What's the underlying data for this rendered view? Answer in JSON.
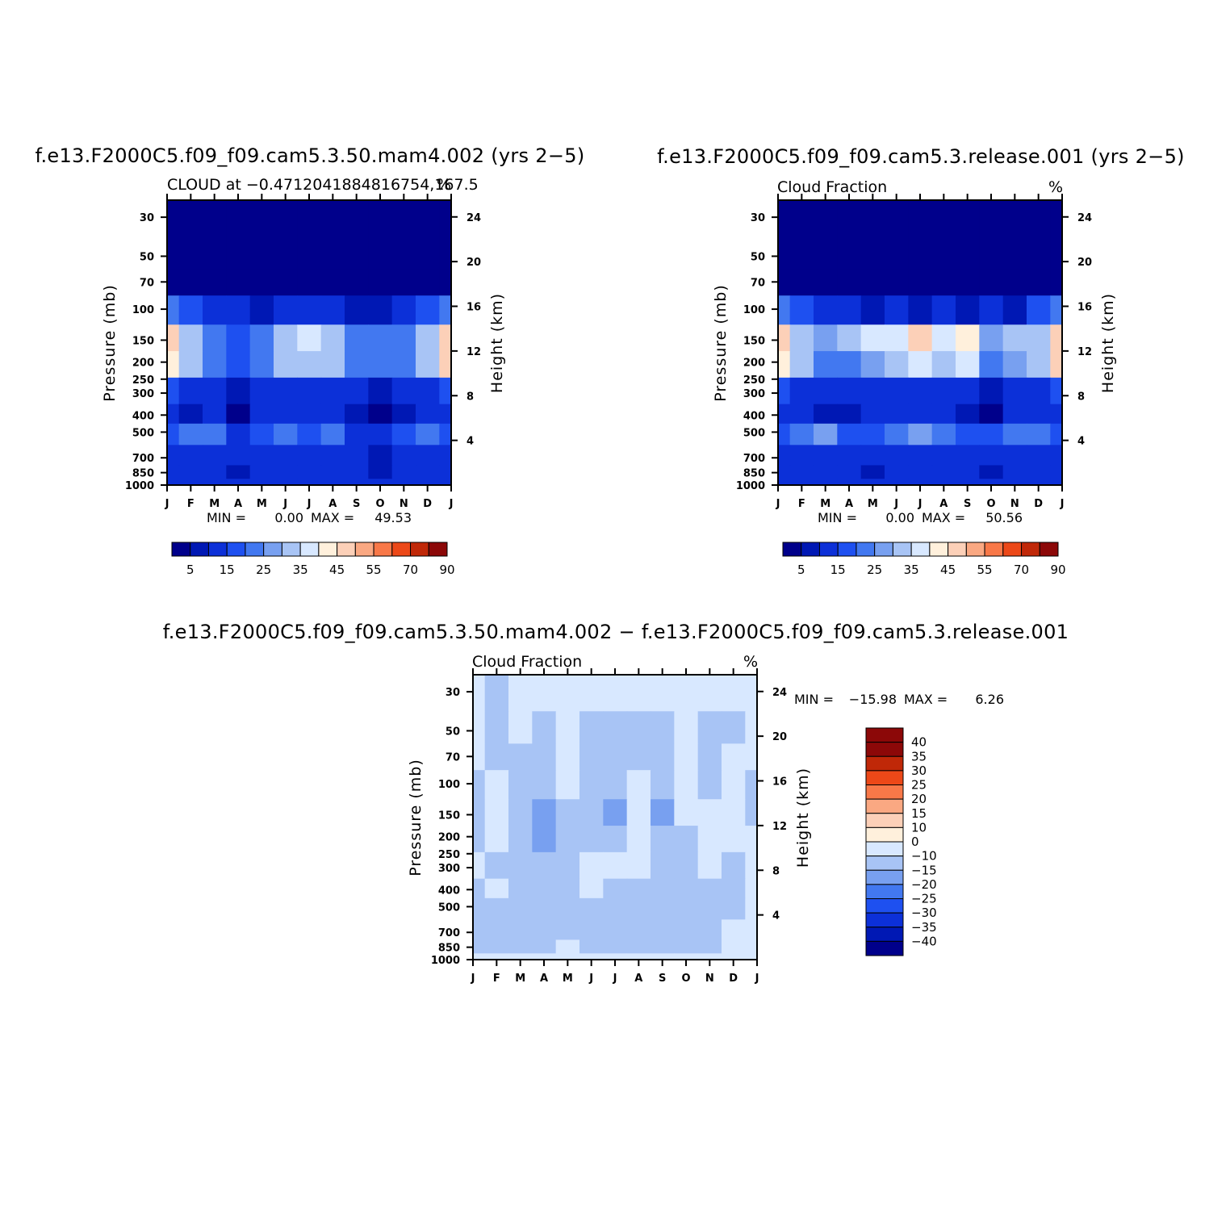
{
  "chart_data": [
    {
      "type": "heatmap",
      "title": "f.e13.F2000C5.f09_f09.cam5.3.50.mam4.002 (yrs 2−5)",
      "subtitle": "CLOUD at −0.4712041884816754,167.5",
      "units": "%",
      "xlabel": "",
      "ylabel": "Pressure (mb)",
      "y2label": "Height (km)",
      "x_ticks": [
        "J",
        "F",
        "M",
        "A",
        "M",
        "J",
        "J",
        "A",
        "S",
        "O",
        "N",
        "D",
        "J"
      ],
      "y_ticks": [
        "30",
        "50",
        "70",
        "100",
        "150",
        "200",
        "250",
        "300",
        "400",
        "500",
        "700",
        "850",
        "1000"
      ],
      "y_tick_values": [
        30,
        50,
        70,
        100,
        150,
        200,
        250,
        300,
        400,
        500,
        700,
        850,
        1000
      ],
      "y2_ticks": [
        "24",
        "20",
        "16",
        "12",
        "8",
        "4"
      ],
      "y2_tick_values": [
        24,
        20,
        16,
        12,
        8,
        4
      ],
      "stats": {
        "min_label": "MIN =",
        "min": "0.00",
        "max_label": "MAX =",
        "max": "49.53"
      },
      "levels": [
        "5",
        "15",
        "25",
        "35",
        "45",
        "55",
        "70",
        "90"
      ],
      "months": [
        0,
        1,
        2,
        3,
        4,
        5,
        6,
        7,
        8,
        9,
        10,
        11,
        12
      ],
      "pressure": [
        30,
        50,
        70,
        100,
        150,
        200,
        300,
        400,
        500,
        700,
        850,
        1000
      ],
      "values": [
        [
          0,
          0,
          0,
          0,
          0,
          0,
          0,
          0,
          0,
          0,
          0,
          0,
          0
        ],
        [
          0,
          0,
          0,
          0,
          0,
          0,
          0,
          0,
          0,
          0,
          0,
          0,
          0
        ],
        [
          3,
          1,
          0,
          0,
          0,
          0,
          0,
          0,
          0,
          0,
          0,
          1,
          3
        ],
        [
          20,
          15,
          12,
          10,
          8,
          10,
          10,
          10,
          8,
          8,
          10,
          15,
          20
        ],
        [
          45,
          30,
          20,
          18,
          22,
          34,
          36,
          32,
          24,
          22,
          20,
          30,
          48
        ],
        [
          40,
          30,
          22,
          18,
          20,
          30,
          34,
          30,
          22,
          20,
          20,
          30,
          45
        ],
        [
          18,
          14,
          10,
          8,
          10,
          14,
          14,
          12,
          10,
          8,
          10,
          14,
          18
        ],
        [
          10,
          5,
          10,
          4,
          10,
          12,
          12,
          10,
          8,
          4,
          8,
          10,
          12
        ],
        [
          18,
          20,
          24,
          14,
          16,
          24,
          18,
          22,
          14,
          12,
          18,
          20,
          18
        ],
        [
          14,
          12,
          12,
          10,
          12,
          14,
          12,
          12,
          10,
          8,
          10,
          12,
          14
        ],
        [
          12,
          12,
          10,
          8,
          10,
          12,
          12,
          12,
          10,
          6,
          10,
          12,
          14
        ],
        [
          10,
          10,
          10,
          10,
          10,
          10,
          10,
          10,
          10,
          10,
          10,
          10,
          10
        ]
      ],
      "colors": [
        "#00008b",
        "#0018b4",
        "#0c30d8",
        "#1e50f0",
        "#4278f0",
        "#78a0f0",
        "#a8c4f5",
        "#d8e8ff",
        "#fff0dc",
        "#fcd0b8",
        "#faa882",
        "#f87848",
        "#ec4818",
        "#c02808",
        "#8c0808"
      ]
    },
    {
      "type": "heatmap",
      "title": "f.e13.F2000C5.f09_f09.cam5.3.release.001 (yrs 2−5)",
      "subtitle": "Cloud Fraction",
      "units": "%",
      "xlabel": "",
      "ylabel": "Pressure (mb)",
      "y2label": "Height (km)",
      "x_ticks": [
        "J",
        "F",
        "M",
        "A",
        "M",
        "J",
        "J",
        "A",
        "S",
        "O",
        "N",
        "D",
        "J"
      ],
      "y_ticks": [
        "30",
        "50",
        "70",
        "100",
        "150",
        "200",
        "250",
        "300",
        "400",
        "500",
        "700",
        "850",
        "1000"
      ],
      "y_tick_values": [
        30,
        50,
        70,
        100,
        150,
        200,
        250,
        300,
        400,
        500,
        700,
        850,
        1000
      ],
      "y2_ticks": [
        "24",
        "20",
        "16",
        "12",
        "8",
        "4"
      ],
      "y2_tick_values": [
        24,
        20,
        16,
        12,
        8,
        4
      ],
      "stats": {
        "min_label": "MIN =",
        "min": "0.00",
        "max_label": "MAX =",
        "max": "50.56"
      },
      "levels": [
        "5",
        "15",
        "25",
        "35",
        "45",
        "55",
        "70",
        "90"
      ],
      "months": [
        0,
        1,
        2,
        3,
        4,
        5,
        6,
        7,
        8,
        9,
        10,
        11,
        12
      ],
      "pressure": [
        30,
        50,
        70,
        100,
        150,
        200,
        300,
        400,
        500,
        700,
        850,
        1000
      ],
      "values": [
        [
          0,
          0,
          0,
          0,
          0,
          0,
          0,
          0,
          0,
          0,
          0,
          0,
          0
        ],
        [
          0,
          0,
          0,
          0,
          0,
          0,
          0,
          0,
          0,
          0,
          0,
          0,
          0
        ],
        [
          3,
          1,
          0,
          0,
          0,
          0,
          0,
          0,
          0,
          0,
          0,
          1,
          3
        ],
        [
          20,
          15,
          12,
          10,
          8,
          10,
          8,
          10,
          8,
          10,
          8,
          15,
          20
        ],
        [
          46,
          32,
          28,
          30,
          36,
          38,
          46,
          36,
          44,
          28,
          34,
          32,
          48
        ],
        [
          40,
          30,
          24,
          24,
          28,
          32,
          38,
          32,
          36,
          24,
          28,
          30,
          45
        ],
        [
          18,
          14,
          10,
          10,
          12,
          14,
          14,
          12,
          10,
          8,
          12,
          14,
          18
        ],
        [
          12,
          10,
          8,
          8,
          10,
          12,
          12,
          10,
          8,
          4,
          10,
          12,
          12
        ],
        [
          18,
          20,
          28,
          18,
          18,
          22,
          28,
          20,
          18,
          16,
          20,
          24,
          18
        ],
        [
          14,
          12,
          12,
          12,
          12,
          14,
          14,
          12,
          12,
          10,
          12,
          12,
          14
        ],
        [
          12,
          12,
          10,
          10,
          8,
          12,
          14,
          12,
          10,
          8,
          10,
          12,
          14
        ],
        [
          10,
          10,
          10,
          10,
          10,
          10,
          10,
          10,
          10,
          10,
          10,
          10,
          10
        ]
      ],
      "colors": [
        "#00008b",
        "#0018b4",
        "#0c30d8",
        "#1e50f0",
        "#4278f0",
        "#78a0f0",
        "#a8c4f5",
        "#d8e8ff",
        "#fff0dc",
        "#fcd0b8",
        "#faa882",
        "#f87848",
        "#ec4818",
        "#c02808",
        "#8c0808"
      ]
    },
    {
      "type": "heatmap",
      "title": "f.e13.F2000C5.f09_f09.cam5.3.50.mam4.002 − f.e13.F2000C5.f09_f09.cam5.3.release.001",
      "subtitle": "Cloud Fraction",
      "units": "%",
      "xlabel": "",
      "ylabel": "Pressure (mb)",
      "y2label": "Height (km)",
      "x_ticks": [
        "J",
        "F",
        "M",
        "A",
        "M",
        "J",
        "J",
        "A",
        "S",
        "O",
        "N",
        "D",
        "J"
      ],
      "y_ticks": [
        "30",
        "50",
        "70",
        "100",
        "150",
        "200",
        "250",
        "300",
        "400",
        "500",
        "700",
        "850",
        "1000"
      ],
      "y_tick_values": [
        30,
        50,
        70,
        100,
        150,
        200,
        250,
        300,
        400,
        500,
        700,
        850,
        1000
      ],
      "y2_ticks": [
        "24",
        "20",
        "16",
        "12",
        "8",
        "4"
      ],
      "y2_tick_values": [
        24,
        20,
        16,
        12,
        8,
        4
      ],
      "stats": {
        "min_label": "MIN =",
        "min": "−15.98",
        "max_label": "MAX =",
        "max": "6.26"
      },
      "levels": [
        "40",
        "35",
        "30",
        "25",
        "20",
        "15",
        "10",
        "0",
        "−10",
        "−15",
        "−20",
        "−25",
        "−30",
        "−35",
        "−40"
      ],
      "months": [
        0,
        1,
        2,
        3,
        4,
        5,
        6,
        7,
        8,
        9,
        10,
        11,
        12
      ],
      "pressure": [
        30,
        50,
        70,
        100,
        150,
        200,
        300,
        400,
        500,
        700,
        850,
        1000
      ],
      "values": [
        [
          2,
          -2,
          2,
          2,
          2,
          2,
          2,
          2,
          2,
          2,
          2,
          2,
          2
        ],
        [
          2,
          -2,
          2,
          -2,
          2,
          -2,
          -2,
          -2,
          -2,
          2,
          -2,
          -2,
          2
        ],
        [
          2,
          -2,
          -2,
          -2,
          2,
          -2,
          -2,
          -2,
          -2,
          2,
          -2,
          2,
          2
        ],
        [
          -2,
          2,
          -2,
          -2,
          2,
          -2,
          -2,
          2,
          -2,
          2,
          -2,
          2,
          -2
        ],
        [
          -2,
          2,
          -4,
          -12,
          -4,
          -2,
          -12,
          2,
          -12,
          2,
          2,
          2,
          -6
        ],
        [
          -2,
          2,
          -4,
          -12,
          -4,
          -2,
          -4,
          2,
          -4,
          -2,
          2,
          2,
          2
        ],
        [
          2,
          -2,
          -2,
          -2,
          -2,
          2,
          2,
          2,
          -2,
          -2,
          2,
          -2,
          2
        ],
        [
          -2,
          2,
          -2,
          -2,
          -2,
          2,
          -2,
          -2,
          -2,
          -2,
          -2,
          -2,
          2
        ],
        [
          -2,
          -2,
          -2,
          -2,
          -2,
          -2,
          -2,
          -2,
          -2,
          -2,
          -2,
          -2,
          2
        ],
        [
          -2,
          -2,
          -2,
          -2,
          -2,
          -2,
          -2,
          -2,
          -2,
          -2,
          -2,
          2,
          2
        ],
        [
          -2,
          -2,
          -2,
          -2,
          2,
          -2,
          -2,
          -2,
          -2,
          -2,
          -2,
          2,
          2
        ],
        [
          2,
          2,
          2,
          2,
          2,
          2,
          2,
          2,
          2,
          2,
          2,
          2,
          2
        ]
      ],
      "colors": [
        "#00008b",
        "#0018b4",
        "#0c30d8",
        "#1e50f0",
        "#4278f0",
        "#78a0f0",
        "#a8c4f5",
        "#d8e8ff",
        "#fff0dc",
        "#fcd0b8",
        "#faa882",
        "#f87848",
        "#ec4818",
        "#c02808",
        "#8c0808"
      ]
    }
  ]
}
